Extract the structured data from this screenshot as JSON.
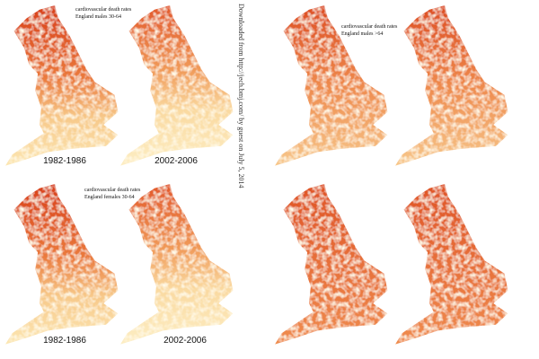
{
  "panels": [
    {
      "label": [
        "cardiovascular death rates",
        "England males 30-64"
      ],
      "captions": [
        "1982-1986",
        "2002-2006"
      ]
    },
    {
      "label": [
        "cardiovascular death rates",
        "England males >64"
      ],
      "captions": []
    },
    {
      "label": [
        "cardiovascular death rates",
        "England females 30-64"
      ],
      "captions": [
        "1982-1986",
        "2002-2006"
      ]
    },
    {
      "label": [],
      "captions": []
    }
  ],
  "source": "Downloaded from http://jech.bmj.com/ by guest on July 5, 2014"
}
